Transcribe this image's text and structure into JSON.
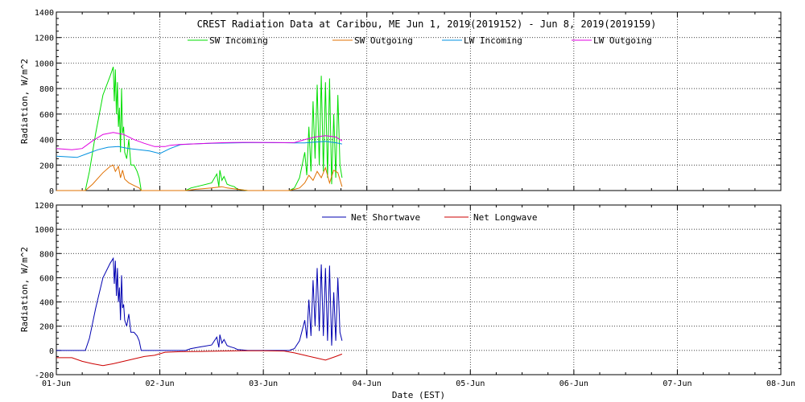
{
  "colors": {
    "sw_incoming": "#00dd00",
    "sw_outgoing": "#e07000",
    "lw_incoming": "#0090e0",
    "lw_outgoing": "#e000e0",
    "net_shortwave": "#0000b0",
    "net_longwave": "#cc0000"
  },
  "chart_data": [
    {
      "type": "line",
      "title": "CREST Radiation Data at Caribou, ME   Jun  1, 2019(2019152) - Jun  8, 2019(2019159)",
      "xlabel": "",
      "ylabel": "Radiation, W/m^2",
      "xlim": [
        0,
        7
      ],
      "ylim": [
        0,
        1400
      ],
      "y_ticks": [
        "0",
        "200",
        "400",
        "600",
        "800",
        "1000",
        "1200",
        "1400"
      ],
      "grid": true,
      "legend": "top-center",
      "series": [
        {
          "name": "SW Incoming",
          "color_key": "sw_incoming",
          "x": [
            0,
            0.28,
            0.32,
            0.38,
            0.45,
            0.52,
            0.55,
            0.56,
            0.57,
            0.58,
            0.59,
            0.6,
            0.61,
            0.62,
            0.63,
            0.64,
            0.65,
            0.66,
            0.68,
            0.7,
            0.72,
            0.75,
            0.78,
            0.8,
            0.82,
            0.9,
            1.0,
            1.25,
            1.3,
            1.4,
            1.5,
            1.55,
            1.57,
            1.58,
            1.6,
            1.62,
            1.65,
            1.68,
            1.72,
            1.75,
            1.8,
            1.85,
            2.0,
            2.25,
            2.3,
            2.35,
            2.4,
            2.42,
            2.44,
            2.46,
            2.48,
            2.5,
            2.52,
            2.54,
            2.56,
            2.58,
            2.6,
            2.62,
            2.64,
            2.66,
            2.68,
            2.7,
            2.72,
            2.74,
            2.76
          ],
          "values": [
            0,
            0,
            150,
            450,
            750,
            900,
            970,
            700,
            950,
            600,
            850,
            500,
            650,
            300,
            800,
            450,
            500,
            300,
            250,
            400,
            200,
            200,
            150,
            100,
            0,
            0,
            0,
            0,
            20,
            40,
            60,
            130,
            30,
            160,
            80,
            110,
            50,
            40,
            30,
            10,
            5,
            0,
            0,
            0,
            20,
            100,
            300,
            120,
            500,
            150,
            700,
            250,
            830,
            200,
            900,
            150,
            850,
            100,
            880,
            50,
            600,
            100,
            750,
            200,
            100
          ]
        },
        {
          "name": "SW Outgoing",
          "color_key": "sw_outgoing",
          "x": [
            0,
            0.28,
            0.35,
            0.45,
            0.52,
            0.55,
            0.57,
            0.6,
            0.62,
            0.64,
            0.66,
            0.7,
            0.75,
            0.8,
            0.82,
            1.0,
            1.25,
            1.35,
            1.5,
            1.55,
            1.6,
            1.65,
            1.75,
            1.85,
            2.0,
            2.25,
            2.35,
            2.4,
            2.44,
            2.48,
            2.52,
            2.56,
            2.6,
            2.64,
            2.68,
            2.72,
            2.76
          ],
          "values": [
            0,
            0,
            50,
            140,
            190,
            200,
            150,
            190,
            100,
            160,
            90,
            60,
            40,
            20,
            0,
            0,
            0,
            10,
            20,
            25,
            30,
            20,
            10,
            0,
            0,
            0,
            20,
            60,
            120,
            80,
            150,
            100,
            180,
            60,
            160,
            140,
            30
          ]
        },
        {
          "name": "LW Incoming",
          "color_key": "lw_incoming",
          "x": [
            0,
            0.2,
            0.3,
            0.4,
            0.5,
            0.6,
            0.7,
            0.8,
            0.9,
            1.0,
            1.1,
            1.2,
            1.3,
            1.4,
            1.5,
            1.6,
            1.7,
            1.8,
            1.9,
            2.0,
            2.1,
            2.2,
            2.3,
            2.4,
            2.5,
            2.6,
            2.7,
            2.76
          ],
          "values": [
            270,
            260,
            290,
            320,
            340,
            345,
            330,
            320,
            310,
            290,
            330,
            360,
            365,
            368,
            370,
            372,
            374,
            375,
            376,
            376,
            375,
            375,
            374,
            374,
            380,
            385,
            375,
            365
          ]
        },
        {
          "name": "LW Outgoing",
          "color_key": "lw_outgoing",
          "x": [
            0,
            0.15,
            0.25,
            0.35,
            0.45,
            0.55,
            0.65,
            0.75,
            0.85,
            0.95,
            1.05,
            1.1,
            1.2,
            1.3,
            1.4,
            1.5,
            1.6,
            1.7,
            1.8,
            1.9,
            2.0,
            2.1,
            2.2,
            2.3,
            2.4,
            2.5,
            2.6,
            2.7,
            2.76
          ],
          "values": [
            330,
            320,
            330,
            390,
            440,
            455,
            440,
            400,
            370,
            345,
            345,
            355,
            362,
            365,
            368,
            372,
            375,
            377,
            378,
            378,
            377,
            377,
            376,
            376,
            400,
            420,
            430,
            420,
            390
          ]
        }
      ]
    },
    {
      "type": "line",
      "title": "",
      "xlabel": "Date (EST)",
      "ylabel": "Radiation, W/m^2",
      "xlim": [
        0,
        7
      ],
      "ylim": [
        -200,
        1200
      ],
      "y_ticks": [
        "-200",
        "0",
        "200",
        "400",
        "600",
        "800",
        "1000",
        "1200"
      ],
      "x_ticks": [
        "01-Jun",
        "02-Jun",
        "03-Jun",
        "04-Jun",
        "05-Jun",
        "06-Jun",
        "07-Jun",
        "08-Jun"
      ],
      "grid": true,
      "legend": "top-center",
      "series": [
        {
          "name": "Net Shortwave",
          "color_key": "net_shortwave",
          "x": [
            0,
            0.28,
            0.32,
            0.38,
            0.45,
            0.52,
            0.55,
            0.56,
            0.57,
            0.58,
            0.59,
            0.6,
            0.61,
            0.62,
            0.63,
            0.64,
            0.65,
            0.66,
            0.68,
            0.7,
            0.72,
            0.75,
            0.78,
            0.8,
            0.82,
            0.9,
            1.0,
            1.25,
            1.3,
            1.4,
            1.5,
            1.55,
            1.57,
            1.58,
            1.6,
            1.62,
            1.65,
            1.68,
            1.72,
            1.75,
            1.8,
            1.85,
            2.0,
            2.25,
            2.3,
            2.35,
            2.4,
            2.42,
            2.44,
            2.46,
            2.48,
            2.5,
            2.52,
            2.54,
            2.56,
            2.58,
            2.6,
            2.62,
            2.64,
            2.66,
            2.68,
            2.7,
            2.72,
            2.74,
            2.76
          ],
          "values": [
            0,
            0,
            100,
            350,
            600,
            720,
            760,
            550,
            740,
            450,
            680,
            400,
            520,
            250,
            620,
            350,
            380,
            250,
            200,
            300,
            150,
            150,
            120,
            80,
            0,
            0,
            0,
            0,
            15,
            30,
            45,
            110,
            25,
            130,
            60,
            90,
            40,
            30,
            20,
            8,
            4,
            0,
            0,
            0,
            15,
            80,
            250,
            100,
            420,
            120,
            580,
            200,
            680,
            160,
            710,
            120,
            680,
            80,
            700,
            40,
            480,
            80,
            600,
            150,
            80
          ]
        },
        {
          "name": "Net Longwave",
          "color_key": "net_longwave",
          "x": [
            0,
            0.15,
            0.25,
            0.35,
            0.45,
            0.55,
            0.65,
            0.75,
            0.85,
            0.95,
            1.05,
            1.2,
            1.4,
            1.6,
            1.8,
            2.0,
            2.2,
            2.3,
            2.4,
            2.5,
            2.6,
            2.7,
            2.76
          ],
          "values": [
            -60,
            -60,
            -90,
            -110,
            -125,
            -110,
            -90,
            -70,
            -50,
            -40,
            -15,
            -10,
            -8,
            -5,
            -3,
            -2,
            -5,
            -20,
            -40,
            -60,
            -80,
            -50,
            -30
          ]
        }
      ]
    }
  ]
}
